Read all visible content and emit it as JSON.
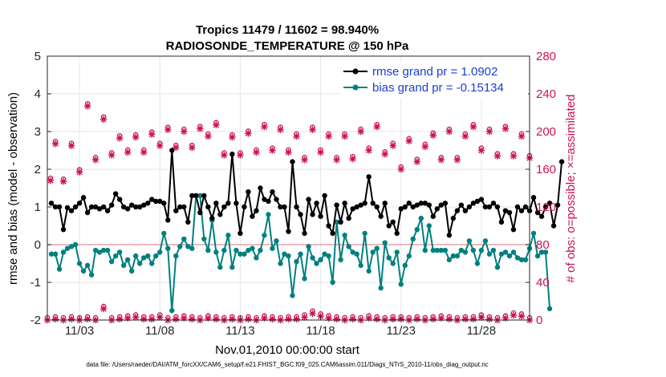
{
  "chart_data": {
    "type": "line",
    "title_line1": "Tropics 11479 / 11602 = 98.940%",
    "title_line2": "RADIOSONDE_TEMPERATURE @ 150 hPa",
    "xlabel": "Nov.01,2010 00:00:00 start",
    "ylabel_left": "rmse and bias (model - observation)",
    "ylabel_right": "# of obs: o=possible; ×=assimilated",
    "ylim_left": [
      -2,
      5
    ],
    "ylim_right": [
      0,
      280
    ],
    "xlim_days": [
      1.0,
      31.0
    ],
    "yticks_left": [
      "-2",
      "-1",
      "0",
      "1",
      "2",
      "3",
      "4",
      "5"
    ],
    "yticks_right": [
      "0",
      "40",
      "80",
      "120",
      "160",
      "200",
      "240",
      "280"
    ],
    "xticks": [
      {
        "day": 3,
        "label": "11/03"
      },
      {
        "day": 8,
        "label": "11/08"
      },
      {
        "day": 13,
        "label": "11/13"
      },
      {
        "day": 18,
        "label": "11/18"
      },
      {
        "day": 23,
        "label": "11/23"
      },
      {
        "day": 28,
        "label": "11/28"
      }
    ],
    "grid": true,
    "legend_position": "top-right",
    "footer": "data file: /Users/raeder/DAI/ATM_forcXX/CAM6_setup/f.e21.FHIST_BGC.f09_025.CAM6assim.011/Diags_NTrS_2010-11/obs_diag_output.nc",
    "start_day": 1.25,
    "step_days": 0.25,
    "series": [
      {
        "name": "rmse grand pr = 1.0902",
        "color": "#000000",
        "axis": "left",
        "values": [
          1.1,
          1.0,
          1.0,
          0.4,
          0.98,
          0.9,
          1.0,
          1.1,
          1.25,
          0.85,
          1.0,
          1.0,
          0.95,
          1.0,
          0.9,
          1.05,
          1.35,
          1.2,
          1.0,
          0.95,
          1.05,
          1.0,
          1.0,
          1.05,
          1.1,
          1.2,
          1.15,
          1.15,
          1.1,
          0.65,
          2.5,
          0.9,
          1.0,
          1.0,
          0.6,
          1.3,
          1.3,
          0.85,
          1.3,
          1.0,
          0.7,
          1.1,
          0.8,
          1.0,
          1.1,
          2.4,
          1.1,
          0.3,
          1.0,
          1.4,
          0.75,
          0.9,
          1.5,
          1.2,
          1.15,
          1.4,
          1.2,
          1.0,
          1.0,
          0.35,
          2.2,
          1.0,
          0.8,
          0.3,
          1.2,
          0.8,
          1.1,
          0.75,
          1.3,
          0.5,
          0.3,
          1.05,
          0.6,
          1.1,
          0.7,
          0.95,
          1.0,
          1.05,
          1.1,
          1.8,
          1.1,
          1.0,
          0.75,
          1.1,
          0.5,
          0.6,
          0.3,
          0.95,
          1.0,
          1.1,
          1.0,
          1.05,
          1.1,
          1.1,
          1.05,
          0.75,
          0.95,
          1.05,
          1.1,
          0.25,
          0.7,
          0.9,
          1.05,
          0.9,
          1.0,
          1.1,
          1.15,
          1.2,
          1.0,
          1.0,
          1.1,
          1.0,
          0.6,
          0.9,
          0.85,
          0.4,
          1.0,
          0.9,
          1.0,
          0.9,
          1.25,
          0.85,
          0.75,
          1.0,
          1.1,
          0.5,
          1.05,
          2.2
        ]
      },
      {
        "name": "bias grand pr = -0.15134",
        "color": "#008080",
        "axis": "left",
        "values": [
          -0.25,
          -0.25,
          -0.65,
          -0.2,
          -0.1,
          -0.05,
          0.0,
          -0.5,
          -0.7,
          -0.55,
          -0.8,
          -0.15,
          -0.2,
          -0.15,
          -0.15,
          -0.45,
          -0.3,
          -0.2,
          -0.55,
          -0.4,
          -0.7,
          -0.3,
          -0.5,
          -0.35,
          -0.3,
          -0.5,
          -0.3,
          -0.2,
          0.3,
          -0.1,
          -1.75,
          -0.3,
          -0.05,
          0.15,
          -0.05,
          -0.1,
          1.3,
          1.3,
          0.15,
          -0.15,
          0.65,
          -0.2,
          -0.6,
          -0.15,
          0.25,
          -0.6,
          -0.15,
          -0.25,
          -0.25,
          -0.15,
          -0.1,
          -0.35,
          -0.15,
          0.25,
          0.8,
          -0.1,
          0.1,
          -0.5,
          -0.25,
          -0.3,
          -1.35,
          -0.45,
          -0.25,
          -0.9,
          -0.05,
          -0.35,
          -0.5,
          -0.4,
          -0.25,
          -0.3,
          -1.0,
          0.6,
          -0.4,
          0.25,
          -0.05,
          -0.2,
          -0.25,
          -0.55,
          0.3,
          -0.7,
          -0.2,
          -0.1,
          -1.15,
          0.05,
          -0.35,
          -0.5,
          -0.2,
          -1.05,
          -0.55,
          -0.3,
          0.15,
          0.4,
          0.7,
          -0.15,
          0.5,
          -0.15,
          -0.15,
          -0.15,
          -0.15,
          -0.4,
          -0.3,
          -0.3,
          -0.15,
          -0.2,
          0.1,
          -0.15,
          -0.5,
          -0.15,
          0.1,
          -0.25,
          -0.15,
          -0.6,
          -0.25,
          -0.2,
          -0.3,
          -0.2,
          -0.35,
          -0.4,
          -0.4,
          -0.1,
          0.3,
          -0.3,
          -0.2,
          -0.2,
          -1.7
        ]
      },
      {
        "name": "obs possible/assimilated (upper)",
        "color": "#cc1155",
        "axis": "right",
        "marker": "o*",
        "points": [
          [
            1.2,
            148
          ],
          [
            1.5,
            187
          ],
          [
            2.0,
            147
          ],
          [
            2.5,
            185
          ],
          [
            3.0,
            157
          ],
          [
            3.5,
            227
          ],
          [
            4.0,
            170
          ],
          [
            4.5,
            213
          ],
          [
            5.0,
            175
          ],
          [
            5.5,
            193
          ],
          [
            6.0,
            178
          ],
          [
            6.5,
            194
          ],
          [
            7.0,
            178
          ],
          [
            7.5,
            197
          ],
          [
            8.0,
            185
          ],
          [
            8.5,
            202
          ],
          [
            9.0,
            183
          ],
          [
            9.5,
            200
          ],
          [
            10.0,
            183
          ],
          [
            10.5,
            203
          ],
          [
            11.0,
            195
          ],
          [
            11.5,
            207
          ],
          [
            12.0,
            175
          ],
          [
            12.5,
            194
          ],
          [
            13.0,
            175
          ],
          [
            13.5,
            198
          ],
          [
            14.0,
            178
          ],
          [
            14.5,
            205
          ],
          [
            15.0,
            180
          ],
          [
            15.5,
            202
          ],
          [
            16.0,
            178
          ],
          [
            16.5,
            195
          ],
          [
            17.0,
            170
          ],
          [
            17.5,
            202
          ],
          [
            18.0,
            178
          ],
          [
            18.5,
            195
          ],
          [
            19.0,
            170
          ],
          [
            19.5,
            195
          ],
          [
            20.0,
            171
          ],
          [
            20.5,
            200
          ],
          [
            21.0,
            180
          ],
          [
            21.5,
            205
          ],
          [
            22.0,
            176
          ],
          [
            22.5,
            185
          ],
          [
            23.0,
            160
          ],
          [
            23.5,
            190
          ],
          [
            24.0,
            168
          ],
          [
            24.5,
            184
          ],
          [
            25.0,
            196
          ],
          [
            25.5,
            170
          ],
          [
            26.0,
            200
          ],
          [
            26.5,
            170
          ],
          [
            27.0,
            195
          ],
          [
            27.5,
            205
          ],
          [
            28.0,
            180
          ],
          [
            28.5,
            200
          ],
          [
            29.0,
            174
          ],
          [
            29.5,
            203
          ],
          [
            30.0,
            174
          ],
          [
            30.5,
            195
          ],
          [
            31.0,
            172
          ]
        ]
      },
      {
        "name": "obs possible/assimilated (lower)",
        "color": "#cc1155",
        "axis": "right",
        "marker": "o*",
        "points": [
          [
            1.0,
            0
          ],
          [
            1.5,
            1
          ],
          [
            2.0,
            0
          ],
          [
            2.5,
            1
          ],
          [
            3.0,
            0
          ],
          [
            3.5,
            1
          ],
          [
            4.0,
            0
          ],
          [
            4.5,
            12
          ],
          [
            5.0,
            0
          ],
          [
            5.5,
            1
          ],
          [
            6.0,
            2
          ],
          [
            6.5,
            3
          ],
          [
            7.0,
            1
          ],
          [
            7.5,
            1
          ],
          [
            8.0,
            3
          ],
          [
            8.5,
            0
          ],
          [
            9.0,
            1
          ],
          [
            9.5,
            2
          ],
          [
            10.0,
            1
          ],
          [
            10.5,
            0
          ],
          [
            11.0,
            2
          ],
          [
            11.5,
            1
          ],
          [
            12.0,
            0
          ],
          [
            12.5,
            1
          ],
          [
            13.0,
            0
          ],
          [
            13.5,
            1
          ],
          [
            14.0,
            0
          ],
          [
            14.5,
            2
          ],
          [
            15.0,
            1
          ],
          [
            15.5,
            0
          ],
          [
            16.0,
            1
          ],
          [
            16.5,
            1
          ],
          [
            17.0,
            3
          ],
          [
            17.5,
            7
          ],
          [
            18.0,
            4
          ],
          [
            18.5,
            2
          ],
          [
            19.0,
            1
          ],
          [
            19.5,
            0
          ],
          [
            20.0,
            1
          ],
          [
            20.5,
            0
          ],
          [
            21.0,
            2
          ],
          [
            21.5,
            1
          ],
          [
            22.0,
            0
          ],
          [
            22.5,
            1
          ],
          [
            23.0,
            1
          ],
          [
            23.5,
            0
          ],
          [
            24.0,
            1
          ],
          [
            24.5,
            0
          ],
          [
            25.0,
            1
          ],
          [
            25.5,
            2
          ],
          [
            26.0,
            1
          ],
          [
            26.5,
            0
          ],
          [
            27.0,
            1
          ],
          [
            27.5,
            1
          ],
          [
            28.0,
            3
          ],
          [
            28.5,
            1
          ],
          [
            29.0,
            0
          ],
          [
            29.5,
            2
          ],
          [
            30.0,
            5
          ],
          [
            30.5,
            4
          ],
          [
            31.0,
            0
          ]
        ]
      }
    ]
  }
}
